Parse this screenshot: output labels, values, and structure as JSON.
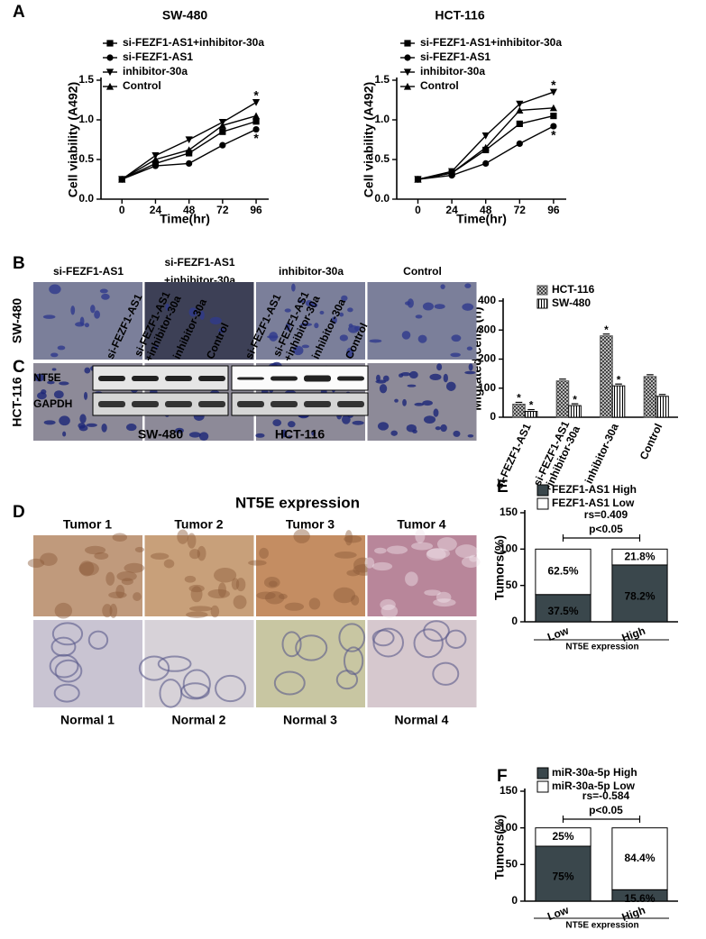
{
  "panels": [
    "A",
    "B",
    "C",
    "D",
    "E",
    "F"
  ],
  "chart_data": [
    {
      "type": "line",
      "title": "SW-480",
      "x_label": "Time(hr)",
      "y_label": "Cell viability (A492)",
      "x": [
        0,
        24,
        48,
        72,
        96
      ],
      "xlim": [
        -15,
        105
      ],
      "xticks": [
        0,
        24,
        48,
        72,
        96
      ],
      "ylim": [
        0,
        1.5
      ],
      "yticks": [
        {
          "value": 0,
          "label": "0.0"
        },
        0.5,
        {
          "value": 1,
          "label": "1.0"
        },
        1.5
      ],
      "series": [
        {
          "name": "si-FEZF1-AS1+inhibitor-30a",
          "marker": "square",
          "color": "#000",
          "values": [
            0.25,
            0.45,
            0.58,
            0.85,
            0.98
          ]
        },
        {
          "name": "si-FEZF1-AS1",
          "marker": "circle",
          "color": "#000",
          "values": [
            0.25,
            0.42,
            0.45,
            0.68,
            0.88
          ]
        },
        {
          "name": "inhibitor-30a",
          "marker": "triangle-down",
          "color": "#000",
          "values": [
            0.25,
            0.55,
            0.75,
            0.97,
            1.22
          ]
        },
        {
          "name": "Control",
          "marker": "triangle-up",
          "color": "#000",
          "values": [
            0.25,
            0.5,
            0.62,
            0.93,
            1.05
          ]
        }
      ],
      "annotations": [
        {
          "text": "*",
          "x": 96,
          "y": 1.3
        },
        {
          "text": "*",
          "x": 96,
          "y": 0.76
        }
      ]
    },
    {
      "type": "line",
      "title": "HCT-116",
      "x_label": "Time(hr)",
      "y_label": "Cell viability (A492)",
      "x": [
        0,
        24,
        48,
        72,
        96
      ],
      "xlim": [
        -15,
        105
      ],
      "xticks": [
        0,
        24,
        48,
        72,
        96
      ],
      "ylim": [
        0,
        1.5
      ],
      "yticks": [
        {
          "value": 0,
          "label": "0.0"
        },
        0.5,
        {
          "value": 1,
          "label": "1.0"
        },
        1.5
      ],
      "series": [
        {
          "name": "si-FEZF1-AS1+inhibitor-30a",
          "marker": "square",
          "color": "#000",
          "values": [
            0.25,
            0.33,
            0.62,
            0.95,
            1.05
          ]
        },
        {
          "name": "si-FEZF1-AS1",
          "marker": "circle",
          "color": "#000",
          "values": [
            0.25,
            0.3,
            0.45,
            0.7,
            0.92
          ]
        },
        {
          "name": "inhibitor-30a",
          "marker": "triangle-down",
          "color": "#000",
          "values": [
            0.25,
            0.35,
            0.8,
            1.2,
            1.35
          ]
        },
        {
          "name": "Control",
          "marker": "triangle-up",
          "color": "#000",
          "values": [
            0.25,
            0.33,
            0.65,
            1.12,
            1.15
          ]
        }
      ],
      "annotations": [
        {
          "text": "*",
          "x": 96,
          "y": 1.43
        },
        {
          "text": "*",
          "x": 96,
          "y": 0.8
        }
      ]
    },
    {
      "type": "bar",
      "y_label": "Migrated cells (n)",
      "categories": [
        "si-FEZF1-AS1",
        [
          "si-FEZF1-AS1",
          "+inhibitor-30a"
        ],
        "inhibitor-30a",
        "Control"
      ],
      "ylim": [
        0,
        400
      ],
      "yticks": [
        0,
        100,
        200,
        300,
        400
      ],
      "series": [
        {
          "name": "HCT-116",
          "pattern": "crosshatch",
          "color": "#555",
          "values": [
            45,
            125,
            280,
            140
          ]
        },
        {
          "name": "SW-480",
          "pattern": "vertical",
          "color": "#000",
          "values": [
            20,
            40,
            108,
            72
          ]
        }
      ],
      "annotations": [
        {
          "text": "*",
          "category": 0,
          "series": 0
        },
        {
          "text": "*",
          "category": 0,
          "series": 1
        },
        {
          "text": "*",
          "category": 1,
          "series": 1
        },
        {
          "text": "*",
          "category": 2,
          "series": 0
        },
        {
          "text": "*",
          "category": 2,
          "series": 1
        }
      ]
    },
    {
      "type": "stacked_bar",
      "y_label": "Tumors(%)",
      "x_label": "NT5E expression",
      "categories": [
        "Low",
        "High"
      ],
      "ylim": [
        0,
        150
      ],
      "yticks": [
        0,
        50,
        100,
        150
      ],
      "series": [
        {
          "name": "FEZF1-AS1 High",
          "color": "#3a474c",
          "values": [
            37.5,
            78.2
          ],
          "value_labels": [
            "37.5%",
            "78.2%"
          ]
        },
        {
          "name": "FEZF1-AS1 Low",
          "color": "#ffffff",
          "values": [
            62.5,
            21.8
          ],
          "value_labels": [
            "62.5%",
            "21.8%"
          ]
        }
      ],
      "annotations": [
        "rs=0.409",
        "p<0.05"
      ]
    },
    {
      "type": "stacked_bar",
      "y_label": "Tumors(%)",
      "x_label": "NT5E expression",
      "categories": [
        "Low",
        "High"
      ],
      "ylim": [
        0,
        150
      ],
      "yticks": [
        0,
        50,
        100,
        150
      ],
      "series": [
        {
          "name": "miR-30a-5p High",
          "color": "#3a474c",
          "values": [
            75,
            15.6
          ],
          "value_labels": [
            "75%",
            "15.6%"
          ]
        },
        {
          "name": "miR-30a-5p Low",
          "color": "#ffffff",
          "values": [
            25,
            84.4
          ],
          "value_labels": [
            "25%",
            "84.4%"
          ]
        }
      ],
      "annotations": [
        "rs=-0.584",
        "p<0.05"
      ]
    }
  ],
  "images": {
    "B": {
      "columns": [
        "si-FEZF1-AS1",
        [
          "si-FEZF1-AS1",
          "+inhibitor-30a"
        ],
        "inhibitor-30a",
        "Control"
      ],
      "rows": [
        "SW-480",
        "HCT-116"
      ]
    },
    "C": {
      "lanes": [
        "si-FEZF1-AS1",
        [
          "si-FEZF1-AS1",
          "+inhibitor-30a"
        ],
        "inhibitor-30a",
        "Control",
        "si-FEZF1-AS1",
        [
          "si-FEZF1-AS1",
          "+inhibitor-30a"
        ],
        "inhibitor-30a",
        "Control"
      ],
      "proteins": [
        "NT5E",
        "GAPDH"
      ],
      "cell_lines": [
        "SW-480",
        "HCT-116"
      ]
    },
    "D": {
      "title": "NT5E expression",
      "tumors": [
        "Tumor 1",
        "Tumor 2",
        "Tumor 3",
        "Tumor 4"
      ],
      "normals": [
        "Normal 1",
        "Normal 2",
        "Normal 3",
        "Normal 4"
      ]
    }
  }
}
